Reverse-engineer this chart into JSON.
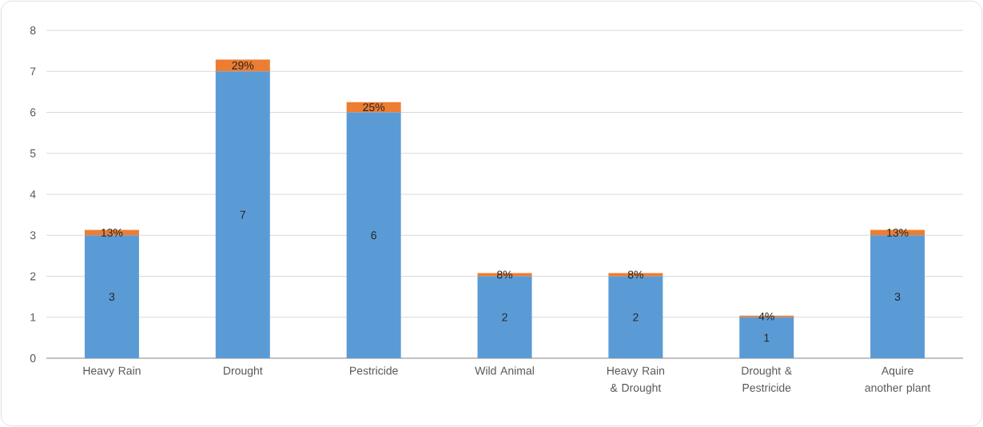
{
  "chart_data": {
    "type": "bar",
    "stacked": true,
    "categories": [
      "Heavy Rain",
      "Drought",
      "Pestricide",
      "Wild Animal",
      "Heavy Rain & Drought",
      "Drought & Pestricide",
      "Aquire another plant"
    ],
    "series": [
      {
        "color": "#5b9bd5",
        "values": [
          3,
          7,
          6,
          2,
          2,
          1,
          3
        ],
        "value_labels": [
          "3",
          "7",
          "6",
          "2",
          "2",
          "1",
          "3"
        ]
      },
      {
        "color": "#ed7d31",
        "values": [
          0.13,
          0.29,
          0.25,
          0.08,
          0.08,
          0.04,
          0.13
        ],
        "value_labels": [
          "13%",
          "29%",
          "25%",
          "8%",
          "8%",
          "4%",
          "13%"
        ]
      }
    ],
    "ylim": [
      0,
      8
    ],
    "yticks": [
      0,
      1,
      2,
      3,
      4,
      5,
      6,
      7,
      8
    ],
    "grid": "y"
  }
}
